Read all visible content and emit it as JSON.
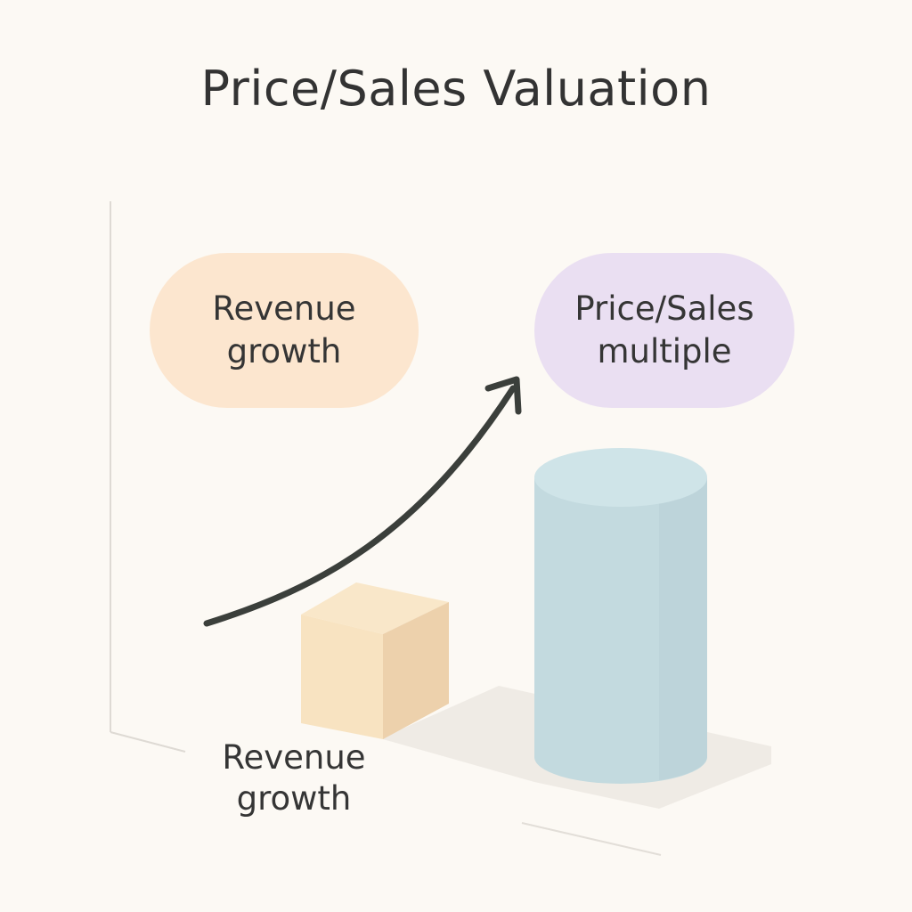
{
  "title": "Price/Sales Valuation",
  "left_pill": {
    "line1": "Revenue",
    "line2": "growth"
  },
  "right_pill": {
    "line1": "Price/Sales",
    "line2": "multiple"
  },
  "bottom_label": {
    "line1": "Revenue",
    "line2": "growth"
  },
  "colors": {
    "background": "#fcf9f4",
    "left_pill": "#fce6cf",
    "right_pill": "#eadff2",
    "cube_top": "#f9e7c9",
    "cube_front": "#f8e3c1",
    "cube_side": "#edd1ac",
    "cylinder": "#c6dde2",
    "cylinder_top": "#cfe4e8",
    "arrow": "#3b3f3b",
    "text": "#353535"
  },
  "icons": [
    "cube-icon",
    "cylinder-icon",
    "growth-arrow-icon"
  ]
}
